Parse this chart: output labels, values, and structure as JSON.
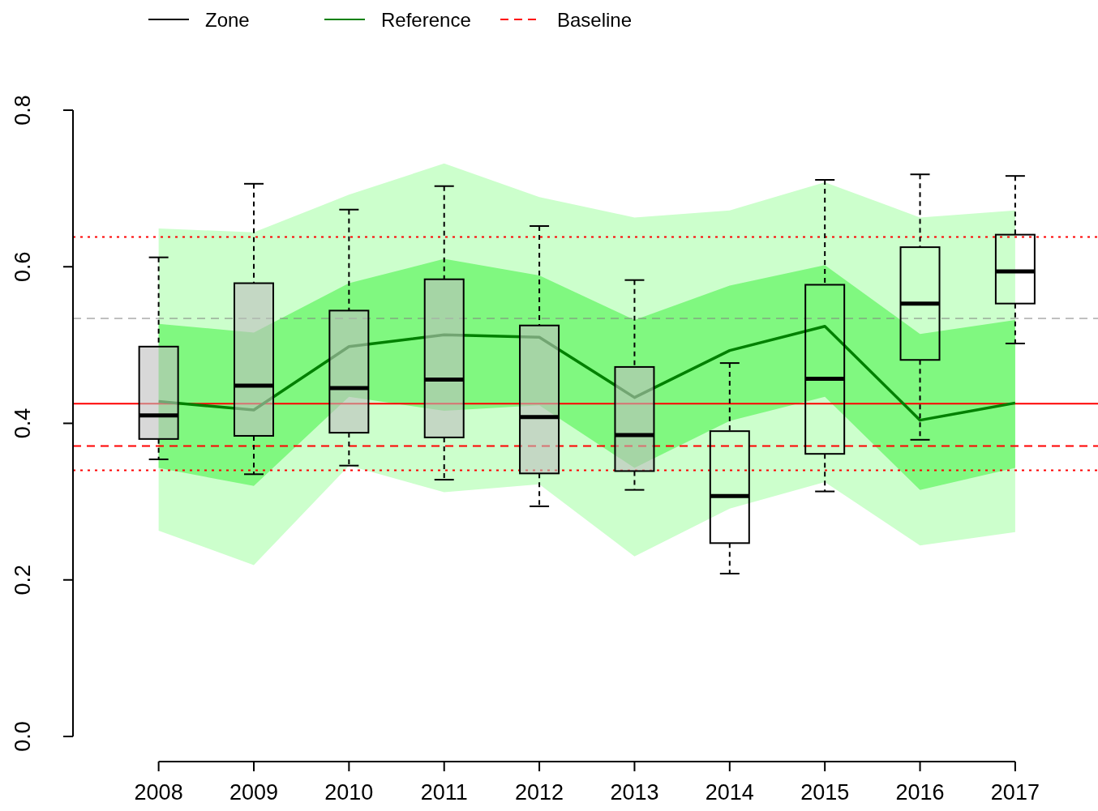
{
  "chart_data": {
    "type": "box",
    "categories": [
      "2008",
      "2009",
      "2010",
      "2011",
      "2012",
      "2013",
      "2014",
      "2015",
      "2016",
      "2017"
    ],
    "ylim": [
      0,
      0.8
    ],
    "yticks": [
      {
        "value": 0,
        "label": "0.0"
      },
      {
        "value": 0.2,
        "label": "0.2"
      },
      {
        "value": 0.4,
        "label": "0.4"
      },
      {
        "value": 0.6,
        "label": "0.6"
      },
      {
        "value": 0.8,
        "label": "0.8"
      }
    ],
    "legend": "top",
    "marker": "none",
    "series": [
      {
        "type": "area",
        "color": "#ccffcc",
        "values": [
          null,
          null,
          null,
          null,
          null,
          null,
          null,
          null,
          null,
          null
        ],
        "lower": [
          0.263,
          0.219,
          0.346,
          0.312,
          0.322,
          0.23,
          0.291,
          0.325,
          0.244,
          0.261
        ],
        "upper": [
          0.649,
          0.644,
          0.692,
          0.732,
          0.689,
          0.663,
          0.672,
          0.708,
          0.663,
          0.672
        ]
      },
      {
        "type": "area",
        "color": "#80f880",
        "values": [
          null,
          null,
          null,
          null,
          null,
          null,
          null,
          null,
          null,
          null
        ],
        "lower": [
          0.343,
          0.32,
          0.434,
          0.416,
          0.423,
          0.343,
          0.403,
          0.434,
          0.315,
          0.343
        ],
        "upper": [
          0.527,
          0.516,
          0.579,
          0.61,
          0.589,
          0.532,
          0.576,
          0.602,
          0.514,
          0.532
        ]
      },
      {
        "name": "Zone",
        "color": "#000000",
        "colors": [
          "#bebebe",
          "#bebebe",
          "#bebebe",
          "#bebebe",
          "#bebebe",
          "#bebebe",
          null,
          null,
          null,
          null
        ],
        "boxes": [
          {
            "low": 0.354,
            "q1": 0.38,
            "median": 0.41,
            "q3": 0.498,
            "high": 0.612
          },
          {
            "low": 0.335,
            "q1": 0.384,
            "median": 0.448,
            "q3": 0.579,
            "high": 0.706
          },
          {
            "low": 0.346,
            "q1": 0.388,
            "median": 0.445,
            "q3": 0.544,
            "high": 0.673
          },
          {
            "low": 0.328,
            "q1": 0.382,
            "median": 0.456,
            "q3": 0.584,
            "high": 0.703
          },
          {
            "low": 0.294,
            "q1": 0.336,
            "median": 0.408,
            "q3": 0.525,
            "high": 0.652
          },
          {
            "low": 0.315,
            "q1": 0.339,
            "median": 0.385,
            "q3": 0.472,
            "high": 0.583
          },
          {
            "low": 0.208,
            "q1": 0.247,
            "median": 0.307,
            "q3": 0.39,
            "high": 0.477
          },
          {
            "low": 0.313,
            "q1": 0.361,
            "median": 0.457,
            "q3": 0.577,
            "high": 0.711
          },
          {
            "low": 0.379,
            "q1": 0.481,
            "median": 0.553,
            "q3": 0.625,
            "high": 0.718
          },
          {
            "low": 0.502,
            "q1": 0.553,
            "median": 0.594,
            "q3": 0.641,
            "high": 0.716
          }
        ]
      },
      {
        "name": "Reference",
        "type": "line",
        "color": "#008000",
        "line_style": "solid",
        "values": [
          0.428,
          0.417,
          0.498,
          0.513,
          0.51,
          0.433,
          0.493,
          0.524,
          0.404,
          0.426
        ]
      },
      {
        "name": "Baseline",
        "type": "line",
        "color": "#ff0000",
        "line_style": "dashed",
        "values": [
          null,
          null,
          null,
          null,
          null,
          null,
          null,
          null,
          null,
          null
        ]
      }
    ],
    "ref_lines": [
      {
        "axis": "y",
        "value": 0.425,
        "color": "#ff0000",
        "line_style": "solid"
      },
      {
        "axis": "y",
        "value": 0.371,
        "color": "#ff0000",
        "line_style": "dashed"
      },
      {
        "axis": "y",
        "value": 0.638,
        "color": "#ff0000",
        "line_style": "dotted"
      },
      {
        "axis": "y",
        "value": 0.34,
        "color": "#ff0000",
        "line_style": "dotted"
      },
      {
        "axis": "y",
        "value": 0.534,
        "color": "#808080",
        "line_style": "dashed"
      }
    ]
  }
}
